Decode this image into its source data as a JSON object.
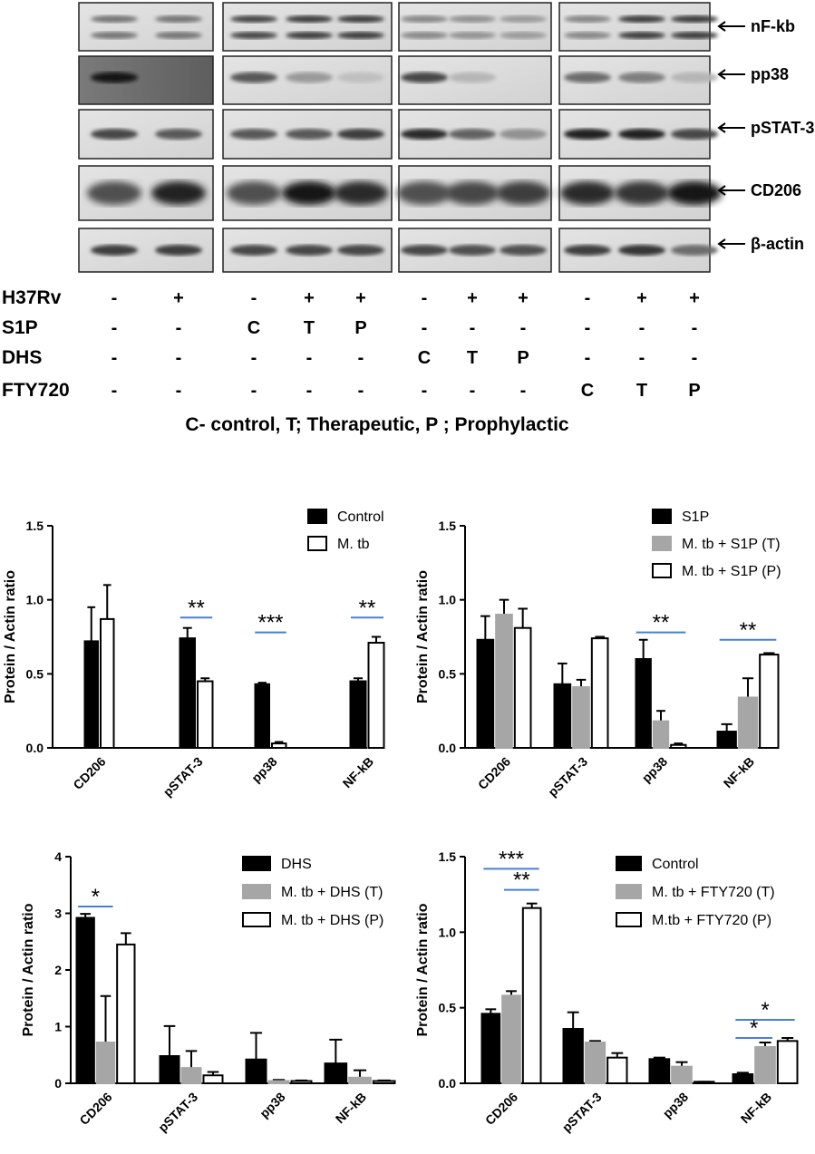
{
  "blot": {
    "proteins": [
      "nF-kb",
      "pp38",
      "pSTAT-3",
      "CD206",
      "β-actin"
    ],
    "conditions": [
      {
        "label": "H37Rv",
        "values": [
          "-",
          "+",
          "-",
          "+",
          "+",
          "-",
          "+",
          "+",
          "-",
          "+",
          "+"
        ]
      },
      {
        "label": "S1P",
        "values": [
          "-",
          "-",
          "C",
          "T",
          "P",
          "-",
          "-",
          "-",
          "-",
          "-",
          "-"
        ]
      },
      {
        "label": "DHS",
        "values": [
          "-",
          "-",
          "-",
          "-",
          "-",
          "C",
          "T",
          "P",
          "-",
          "-",
          "-"
        ]
      },
      {
        "label": "FTY720",
        "values": [
          "-",
          "-",
          "-",
          "-",
          "-",
          "-",
          "-",
          "-",
          "C",
          "T",
          "P"
        ]
      }
    ],
    "footnote": "C- control, T; Therapeutic, P ; Prophylactic"
  },
  "colors": {
    "black": "#000000",
    "gray": "#a6a6a6",
    "white": "#ffffff",
    "sig_line": "#4a7fd6"
  },
  "chart_data": [
    {
      "type": "bar",
      "categories": [
        "CD206",
        "pSTAT-3",
        "pp38",
        "NF-kB"
      ],
      "series": [
        {
          "name": "Control",
          "color": "black",
          "values": [
            0.72,
            0.74,
            0.43,
            0.45
          ],
          "errors": [
            0.23,
            0.07,
            0.01,
            0.02
          ]
        },
        {
          "name": "M. tb",
          "color": "white",
          "values": [
            0.87,
            0.45,
            0.03,
            0.71
          ],
          "errors": [
            0.23,
            0.02,
            0.01,
            0.04
          ]
        }
      ],
      "ylabel": "Protein / Actin ratio",
      "ylim": [
        0,
        1.5
      ],
      "yticks": [
        "0.0",
        "0.5",
        "1.0",
        "1.5"
      ],
      "significance": [
        {
          "category": 1,
          "from": 0,
          "to": 1,
          "y": 0.88,
          "label": "**"
        },
        {
          "category": 2,
          "from": 0,
          "to": 1,
          "y": 0.78,
          "label": "***"
        },
        {
          "category": 3,
          "from": 0,
          "to": 1,
          "y": 0.88,
          "label": "**"
        }
      ]
    },
    {
      "type": "bar",
      "categories": [
        "CD206",
        "pSTAT-3",
        "pp38",
        "NF-kB"
      ],
      "series": [
        {
          "name": "S1P",
          "color": "black",
          "values": [
            0.73,
            0.43,
            0.6,
            0.11
          ],
          "errors": [
            0.16,
            0.14,
            0.13,
            0.05
          ]
        },
        {
          "name": "M. tb + S1P (T)",
          "color": "gray",
          "values": [
            0.9,
            0.41,
            0.18,
            0.34
          ],
          "errors": [
            0.1,
            0.05,
            0.07,
            0.13
          ]
        },
        {
          "name": "M. tb + S1P (P)",
          "color": "white",
          "values": [
            0.81,
            0.74,
            0.02,
            0.63
          ],
          "errors": [
            0.13,
            0.01,
            0.01,
            0.01
          ]
        }
      ],
      "ylabel": "Protein / Actin ratio",
      "ylim": [
        0,
        1.5
      ],
      "yticks": [
        "0.0",
        "0.5",
        "1.0",
        "1.5"
      ],
      "significance": [
        {
          "category": 2,
          "from": 0,
          "to": 2,
          "y": 0.78,
          "label": "**"
        },
        {
          "category": 3,
          "from": 0,
          "to": 2,
          "y": 0.73,
          "label": "**"
        }
      ]
    },
    {
      "type": "bar",
      "categories": [
        "CD206",
        "pSTAT-3",
        "pp38",
        "NF-kB"
      ],
      "series": [
        {
          "name": "DHS",
          "color": "black",
          "values": [
            2.92,
            0.48,
            0.42,
            0.35
          ],
          "errors": [
            0.07,
            0.53,
            0.47,
            0.42
          ]
        },
        {
          "name": "M. tb + DHS (T)",
          "color": "gray",
          "values": [
            0.72,
            0.27,
            0.04,
            0.1
          ],
          "errors": [
            0.82,
            0.3,
            0.02,
            0.13
          ]
        },
        {
          "name": "M. tb + DHS (P)",
          "color": "white",
          "values": [
            2.45,
            0.14,
            0.04,
            0.04
          ],
          "errors": [
            0.2,
            0.06,
            0.01,
            0.01
          ]
        }
      ],
      "ylabel": "Protein / Actin ratio",
      "ylim": [
        0,
        4
      ],
      "yticks": [
        "0",
        "1",
        "2",
        "3",
        "4"
      ],
      "significance": [
        {
          "category": 0,
          "from": 0,
          "to": 1,
          "y": 3.12,
          "label": "*"
        }
      ]
    },
    {
      "type": "bar",
      "categories": [
        "CD206",
        "pSTAT-3",
        "pp38",
        "NF-kB"
      ],
      "series": [
        {
          "name": "Control",
          "color": "black",
          "values": [
            0.46,
            0.36,
            0.16,
            0.06
          ],
          "errors": [
            0.03,
            0.11,
            0.01,
            0.01
          ]
        },
        {
          "name": "M. tb + FTY720 (T)",
          "color": "gray",
          "values": [
            0.58,
            0.27,
            0.11,
            0.24
          ],
          "errors": [
            0.03,
            0.01,
            0.03,
            0.03
          ]
        },
        {
          "name": "M.tb + FTY720 (P)",
          "color": "white",
          "values": [
            1.16,
            0.17,
            0.01,
            0.28
          ],
          "errors": [
            0.03,
            0.03,
            0.0,
            0.02
          ]
        }
      ],
      "ylabel": "Protein / Actin ratio",
      "ylim": [
        0,
        1.5
      ],
      "yticks": [
        "0.0",
        "0.5",
        "1.0",
        "1.5"
      ],
      "significance": [
        {
          "category": 0,
          "from": 0,
          "to": 2,
          "y": 1.42,
          "label": "***"
        },
        {
          "category": 0,
          "from": 1,
          "to": 2,
          "y": 1.28,
          "label": "**"
        },
        {
          "category": 3,
          "from": 0,
          "to": 2,
          "y": 0.42,
          "label": "*"
        },
        {
          "category": 3,
          "from": 0,
          "to": 1,
          "y": 0.3,
          "label": "*"
        }
      ]
    }
  ]
}
